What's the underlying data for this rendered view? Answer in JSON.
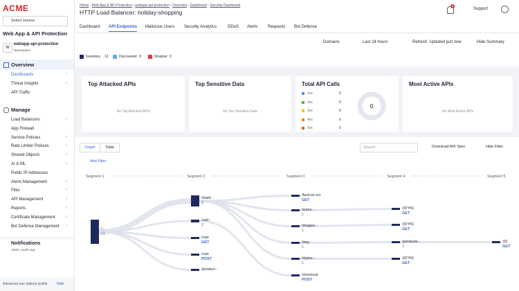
{
  "sidebar": {
    "logo": "ACME",
    "service_select": "Select service",
    "section_title": "Web App & API Protection",
    "namespace": {
      "badge": "W",
      "name": "webapp-api-protection",
      "label": "Namespace"
    },
    "overview": {
      "title": "Overview",
      "items": [
        "Dashboards",
        "Threat Insights",
        "API Traffic"
      ]
    },
    "manage": {
      "title": "Manage",
      "items": [
        "Load Balancers",
        "App Firewall",
        "Service Policies",
        "Rate Limiter Policies",
        "Shared Objects",
        "AI & ML",
        "Public IP Addresses",
        "Alerts Management",
        "Files",
        "API Management",
        "Reports",
        "Certificate Management",
        "Bot Defense Management"
      ]
    },
    "notifications": {
      "title": "Notifications",
      "subtitle": "Alerts, Audit Logs"
    },
    "footer": {
      "text": "Advanced nav options visible",
      "action": "Hide"
    }
  },
  "header": {
    "breadcrumbs": [
      "Home",
      "Web App & API Protection",
      "webapp-api-protection",
      "Overview",
      "Dashboard",
      "Security Dashboard"
    ],
    "title": "HTTP Load Balancer: holiday-shopping",
    "notification_count": 1,
    "support": "Support"
  },
  "tabs": [
    "Dashboard",
    "API Endpoints",
    "Malicious Users",
    "Security Analytics",
    "DDoS",
    "Alerts",
    "Requests",
    "Bot Defense"
  ],
  "toolbar": {
    "domains": "Domains",
    "time": "Last 24 hours",
    "refresh": "Refresh: Updated just now",
    "hide_summary": "Hide Summary"
  },
  "legend": [
    {
      "label": "Inventory:",
      "count": 12
    },
    {
      "label": "Discovered:",
      "count": 0
    },
    {
      "label": "Shadow:",
      "count": 0
    }
  ],
  "cards": {
    "top_attacked": {
      "title": "Top Attacked APIs",
      "empty": "No Top Attacked APIs"
    },
    "top_sensitive": {
      "title": "Top Sensitive Data",
      "empty": "No Top Sensitive Data"
    },
    "total_calls": {
      "title": "Total API Calls",
      "rows": [
        {
          "label": "1xx",
          "value": 0
        },
        {
          "label": "2xx",
          "value": 0
        },
        {
          "label": "3xx",
          "value": 0
        },
        {
          "label": "4xx",
          "value": 0
        },
        {
          "label": "5xx",
          "value": 0
        }
      ],
      "total": 0
    },
    "most_active": {
      "title": "Most Active APIs",
      "empty": "No Most Active APIs"
    }
  },
  "controls": {
    "views": [
      "Graph",
      "Table"
    ],
    "search": "Search",
    "download": "Download API Spec",
    "hide_filter": "Hide Filter",
    "add_filter": "Add Filter"
  },
  "sankey": {
    "segments": [
      "Segment 1",
      "Segment 2",
      "Segment 3",
      "Segment 4",
      "Segment 5"
    ],
    "nodes": [
      {
        "label": "/ -",
        "count": 11
      },
      {
        "label": "/static -",
        "count": 5
      },
      {
        "label": "/cart -",
        "count": 2
      },
      {
        "label": "/cart",
        "method": "GET"
      },
      {
        "label": "/cart",
        "method": "POST"
      },
      {
        "label": "/product -"
      },
      {
        "label": "/favicon.ico",
        "method": "GET"
      },
      {
        "label": "/icons -",
        "count": 1
      },
      {
        "label": "/images -",
        "count": 1
      },
      {
        "label": "/img -",
        "count": 1
      },
      {
        "label": "/styles -",
        "count": 1
      },
      {
        "label": "/checkout",
        "method": "POST"
      },
      {
        "label": "/(DYN)",
        "method": "GET"
      },
      {
        "label": "/(DYN)",
        "method": "GET"
      },
      {
        "label": "/products -",
        "count": 1
      },
      {
        "label": "/(DYN)",
        "method": "GET"
      },
      {
        "label": "/(D",
        "method": "GET"
      }
    ]
  }
}
